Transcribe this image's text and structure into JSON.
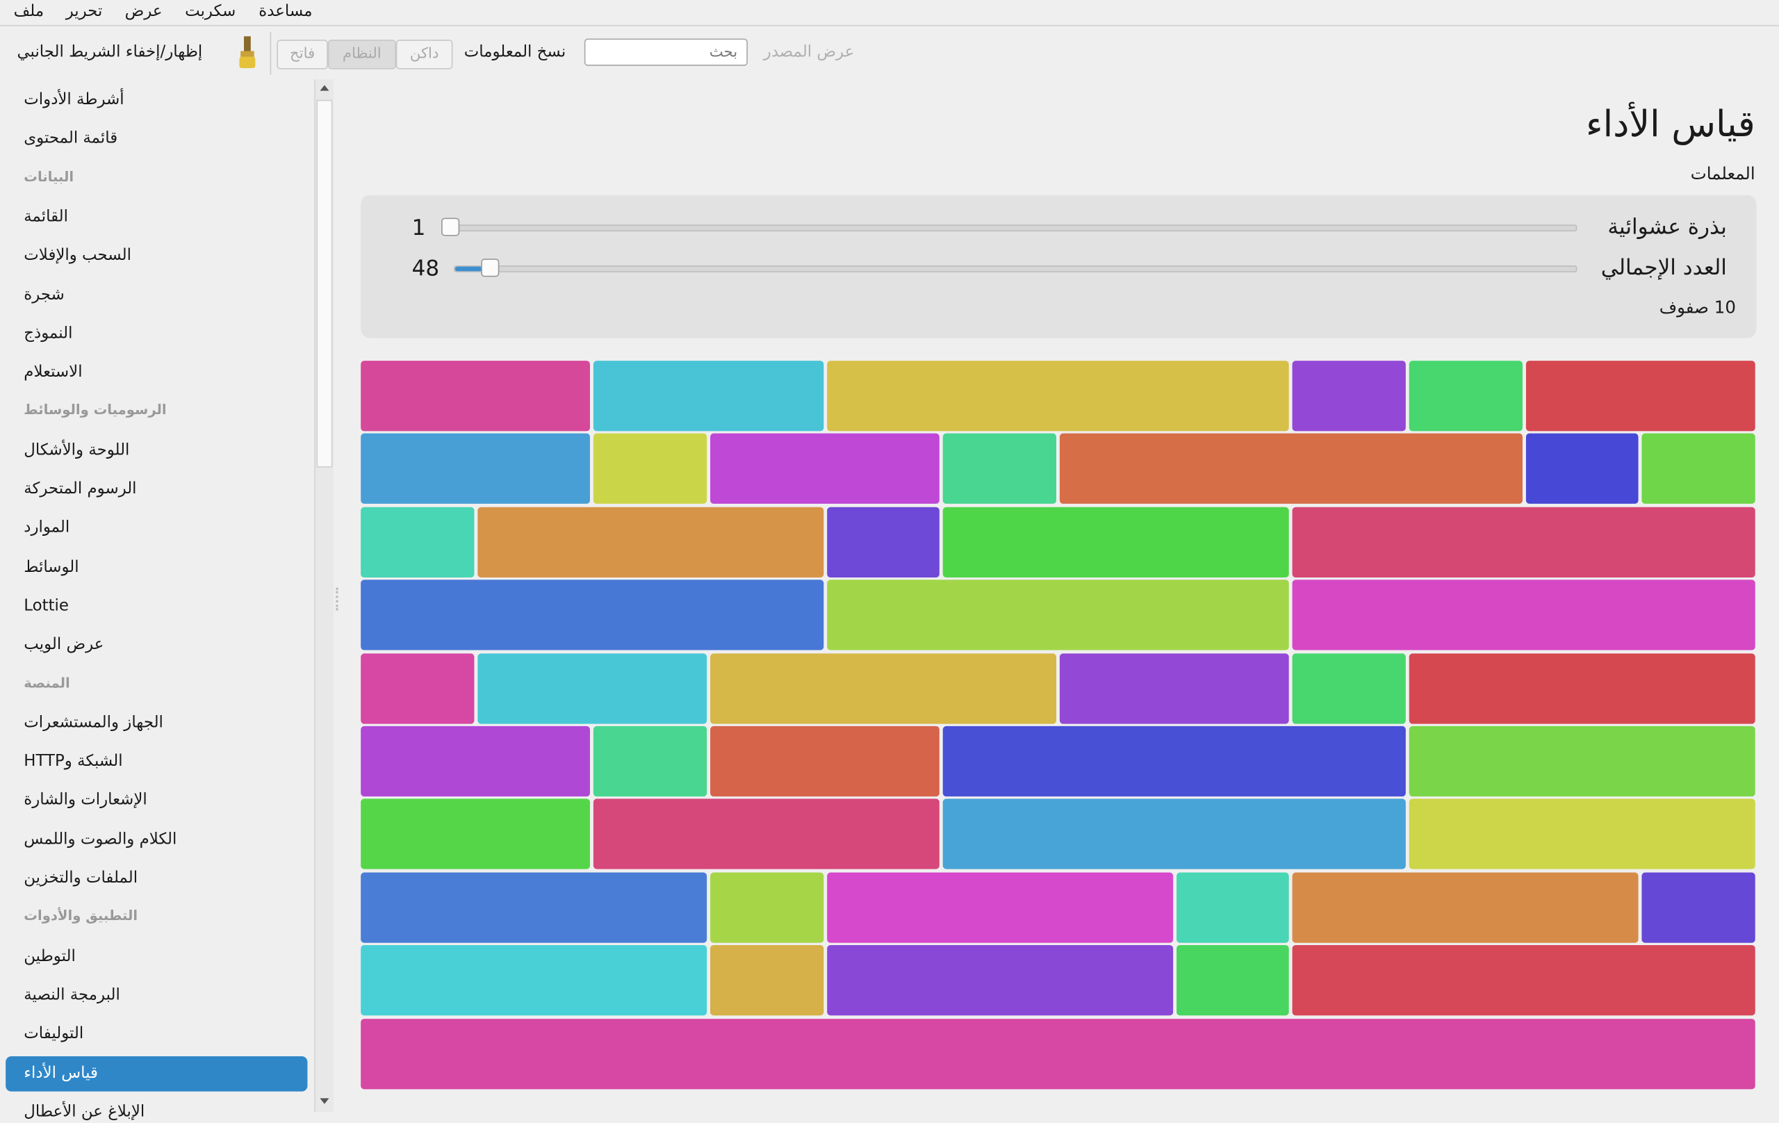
{
  "menu": [
    "ملف",
    "تحرير",
    "عرض",
    "سكربت",
    "مساعدة"
  ],
  "toolbar": {
    "sidebar_toggle": "إظهار/إخفاء الشريط الجانبي",
    "theme_buttons": [
      "فاتح",
      "النظام",
      "داكن"
    ],
    "copy_info": "نسخ المعلومات",
    "search_placeholder": "بحث",
    "view_source": "عرض المصدر"
  },
  "sidebar": {
    "sections": [
      {
        "items": [
          "أشرطة الأدوات",
          "قائمة المحتوى"
        ]
      },
      {
        "header": "البيانات",
        "items": [
          "القائمة",
          "السحب والإفلات",
          "شجرة",
          "النموذج",
          "الاستعلام"
        ]
      },
      {
        "header": "الرسوميات والوسائط",
        "items": [
          "اللوحة والأشكال",
          "الرسوم المتحركة",
          "الموارد",
          "الوسائط",
          "Lottie",
          "عرض الويب"
        ]
      },
      {
        "header": "المنصة",
        "items": [
          "الجهاز والمستشعرات",
          "الشبكة وHTTP",
          "الإشعارات والشارة",
          "الكلام والصوت واللمس",
          "الملفات والتخزين"
        ]
      },
      {
        "header": "التطبيق والأدوات",
        "items": [
          "التوطين",
          "البرمجة النصية",
          "التوليفات",
          "قياس الأداء",
          "الإبلاغ عن الأعطال"
        ]
      }
    ]
  },
  "main": {
    "title": "قياس الأداء",
    "section": "المعلمات",
    "params": [
      {
        "label": "بذرة عشوائية",
        "value": 1
      },
      {
        "label": "العدد الإجمالي",
        "value": 48
      }
    ],
    "rows_label": "10 صفوف"
  }
}
